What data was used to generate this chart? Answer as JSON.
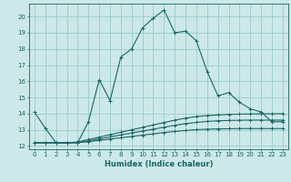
{
  "title": "",
  "xlabel": "Humidex (Indice chaleur)",
  "ylabel": "",
  "bg_color": "#cce8e8",
  "grid_color": "#99cccc",
  "line_color": "#1a6666",
  "spine_color": "#1a6666",
  "xlim": [
    -0.5,
    23.5
  ],
  "ylim": [
    11.8,
    20.8
  ],
  "yticks": [
    12,
    13,
    14,
    15,
    16,
    17,
    18,
    19,
    20
  ],
  "xticks": [
    0,
    1,
    2,
    3,
    4,
    5,
    6,
    7,
    8,
    9,
    10,
    11,
    12,
    13,
    14,
    15,
    16,
    17,
    18,
    19,
    20,
    21,
    22,
    23
  ],
  "series": {
    "main": [
      14.1,
      13.1,
      12.2,
      12.2,
      12.2,
      13.5,
      16.1,
      14.8,
      17.5,
      18.0,
      19.3,
      19.9,
      20.4,
      19.0,
      19.1,
      18.5,
      16.6,
      15.1,
      15.3,
      14.7,
      14.3,
      14.1,
      13.5,
      13.5
    ],
    "line2": [
      12.2,
      12.2,
      12.2,
      12.2,
      12.25,
      12.4,
      12.55,
      12.7,
      12.85,
      13.0,
      13.15,
      13.3,
      13.45,
      13.6,
      13.72,
      13.82,
      13.88,
      13.92,
      13.95,
      13.97,
      13.98,
      13.99,
      13.99,
      14.0
    ],
    "line3": [
      12.2,
      12.2,
      12.2,
      12.2,
      12.22,
      12.32,
      12.44,
      12.56,
      12.68,
      12.8,
      12.92,
      13.04,
      13.16,
      13.28,
      13.38,
      13.46,
      13.52,
      13.56,
      13.58,
      13.59,
      13.6,
      13.6,
      13.6,
      13.6
    ],
    "line4": [
      12.2,
      12.2,
      12.2,
      12.2,
      12.21,
      12.27,
      12.35,
      12.43,
      12.51,
      12.59,
      12.67,
      12.75,
      12.83,
      12.9,
      12.96,
      13.01,
      13.04,
      13.06,
      13.07,
      13.08,
      13.08,
      13.08,
      13.08,
      13.08
    ]
  },
  "markers_x": [
    0,
    1,
    2,
    3,
    4,
    5,
    6,
    7,
    8,
    9,
    10,
    11,
    12,
    13,
    14,
    15,
    16,
    17,
    18,
    19,
    20,
    21,
    22,
    23
  ],
  "marker_style": "+",
  "marker_size": 3,
  "linewidth": 0.8,
  "tick_fontsize": 5,
  "xlabel_fontsize": 6,
  "xlabel_fontweight": "bold"
}
